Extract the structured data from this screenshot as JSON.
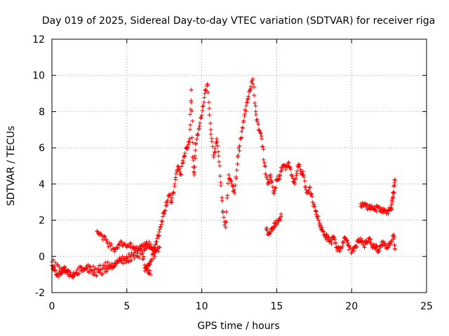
{
  "chart_data": {
    "type": "scatter",
    "title": "Day 019 of 2025, Sidereal Day-to-day VTEC variation (SDTVAR) for receiver riga",
    "xlabel": "GPS time / hours",
    "ylabel": "SDTVAR / TECUs",
    "xlim": [
      0,
      25
    ],
    "ylim": [
      -2,
      12
    ],
    "xticks": [
      0,
      5,
      10,
      15,
      20,
      25
    ],
    "yticks": [
      -2,
      0,
      2,
      4,
      6,
      8,
      10,
      12
    ],
    "grid": true,
    "marker": "+",
    "color": "#ff0000",
    "series": [
      {
        "name": "SDTVAR",
        "segments": [
          {
            "x": [
              0.0,
              0.2,
              0.4,
              0.6,
              0.8,
              1.0,
              1.3,
              1.6,
              2.0,
              2.4,
              2.8,
              3.2,
              3.6,
              4.0,
              4.4,
              4.8,
              5.2,
              5.6,
              6.0,
              6.4,
              6.8,
              7.0,
              7.2,
              7.4,
              7.6,
              7.8,
              8.0,
              8.2,
              8.4,
              8.6,
              8.8,
              9.0,
              9.2,
              9.3,
              9.4,
              9.5,
              9.6,
              9.8,
              10.0,
              10.2,
              10.4,
              10.6,
              10.8,
              11.0,
              11.2,
              11.4,
              11.6,
              11.8,
              12.0,
              12.2,
              12.4,
              12.6,
              12.8,
              13.0,
              13.2,
              13.4,
              13.6,
              13.8,
              14.0,
              14.2,
              14.4,
              14.6,
              14.8,
              15.0,
              15.2,
              15.4,
              15.6,
              15.8,
              16.0,
              16.2,
              16.4,
              16.6,
              16.8,
              17.0,
              17.2,
              17.4,
              17.6,
              17.8,
              18.0,
              18.2,
              18.4,
              18.6,
              18.8,
              19.0,
              19.2,
              19.4,
              19.6,
              19.8,
              20.0,
              20.2,
              20.4,
              20.6,
              20.8,
              21.0,
              21.2,
              21.4,
              21.6,
              21.8,
              22.0,
              22.2,
              22.4,
              22.6,
              22.8,
              22.9
            ],
            "y": [
              -0.5,
              -0.8,
              -1.0,
              -0.9,
              -0.7,
              -0.8,
              -1.1,
              -0.9,
              -0.6,
              -0.8,
              -1.0,
              -0.9,
              -0.7,
              -0.5,
              -0.3,
              -0.1,
              0.0,
              0.2,
              0.3,
              0.5,
              0.5,
              0.8,
              1.5,
              2.2,
              2.8,
              3.4,
              3.0,
              4.0,
              5.0,
              4.5,
              5.5,
              6.0,
              6.5,
              9.2,
              5.5,
              4.5,
              6.2,
              7.0,
              7.8,
              9.0,
              9.5,
              7.0,
              5.5,
              6.5,
              5.0,
              2.5,
              1.6,
              4.5,
              4.0,
              3.5,
              5.5,
              6.5,
              7.5,
              8.5,
              9.2,
              9.8,
              8.0,
              7.0,
              6.5,
              5.0,
              4.0,
              4.5,
              3.5,
              4.2,
              4.5,
              5.0,
              4.8,
              5.2,
              4.5,
              4.0,
              5.0,
              4.8,
              4.5,
              3.5,
              3.8,
              3.0,
              2.5,
              2.0,
              1.5,
              1.2,
              1.0,
              0.8,
              1.0,
              0.5,
              0.3,
              0.8,
              1.0,
              0.6,
              0.2,
              0.5,
              0.8,
              1.0,
              0.6,
              0.8,
              1.0,
              0.5,
              0.6,
              0.3,
              0.8,
              0.6,
              0.5,
              0.8,
              1.2,
              0.4
            ]
          },
          {
            "x": [
              0.0,
              0.5,
              1.0,
              1.5,
              2.0,
              2.5,
              3.0,
              3.5,
              4.0,
              4.5,
              5.0,
              5.5,
              6.0,
              6.3,
              6.6
            ],
            "y": [
              -0.3,
              -0.6,
              -0.9,
              -1.0,
              -0.8,
              -0.6,
              -0.7,
              -0.5,
              -0.4,
              -0.3,
              -0.2,
              -0.1,
              0.1,
              -0.6,
              -1.0
            ]
          },
          {
            "x": [
              3.0,
              3.3,
              3.6,
              3.9,
              4.2,
              4.5,
              4.8,
              5.1,
              5.4,
              5.7,
              6.0,
              6.3,
              6.6,
              6.9
            ],
            "y": [
              1.4,
              1.2,
              0.9,
              0.6,
              0.4,
              0.7,
              0.7,
              0.6,
              0.5,
              0.4,
              0.6,
              0.8,
              0.5,
              0.3
            ]
          },
          {
            "x": [
              6.2,
              6.4,
              6.6,
              6.8,
              7.0,
              7.2
            ],
            "y": [
              -0.8,
              -0.5,
              -0.2,
              0.1,
              0.3,
              0.5
            ]
          },
          {
            "x": [
              14.3,
              14.5,
              14.7,
              14.9,
              15.1,
              15.3
            ],
            "y": [
              1.5,
              1.3,
              1.6,
              1.8,
              2.0,
              2.2
            ]
          },
          {
            "x": [
              20.6,
              20.8,
              21.0,
              21.2,
              21.4,
              21.6,
              21.8,
              22.0,
              22.2,
              22.4,
              22.6,
              22.7,
              22.8,
              22.9
            ],
            "y": [
              2.9,
              2.8,
              2.8,
              2.7,
              2.7,
              2.6,
              2.7,
              2.6,
              2.5,
              2.5,
              2.6,
              3.0,
              3.5,
              4.2
            ]
          }
        ]
      }
    ]
  }
}
